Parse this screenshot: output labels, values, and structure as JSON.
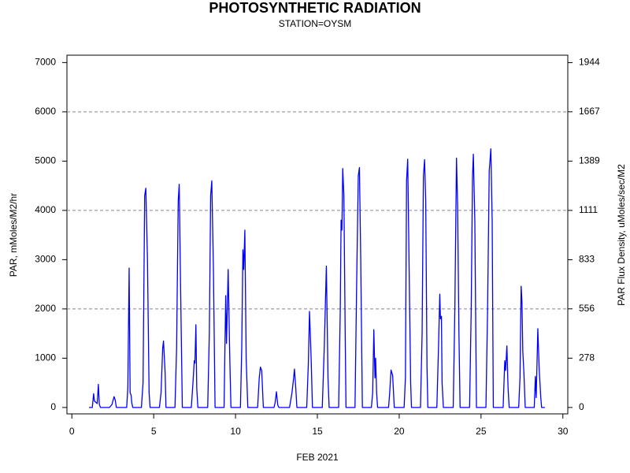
{
  "chart_data": {
    "type": "line",
    "title": "PHOTOSYNTHETIC RADIATION",
    "subtitle": "STATION=OYSM",
    "x_label": "FEB 2021",
    "y_label": "PAR, mMoles/M2/hr",
    "y2_label": "PAR Flux Density, uMoles/sec/M2",
    "color": "#0000ff",
    "grid": true,
    "xlim": [
      -0.3,
      30.3
    ],
    "xticks": [
      0,
      5,
      10,
      15,
      20,
      25,
      30
    ],
    "ylim": [
      -130,
      7150
    ],
    "yticks": [
      0,
      1000,
      2000,
      3000,
      4000,
      5000,
      6000,
      7000
    ],
    "y2lim": [
      -36.1,
      1986.1
    ],
    "y2ticks": [
      0,
      278,
      556,
      833,
      1111,
      1389,
      1667,
      1944
    ],
    "x": [
      1.05,
      1.25,
      1.33,
      1.38,
      1.55,
      1.62,
      1.68,
      1.75,
      2.3,
      2.45,
      2.58,
      2.65,
      2.72,
      3.35,
      3.42,
      3.5,
      3.56,
      3.62,
      3.66,
      3.72,
      4.25,
      4.35,
      4.45,
      4.52,
      4.62,
      4.72,
      4.78,
      5.35,
      5.45,
      5.55,
      5.6,
      5.7,
      5.75,
      6.3,
      6.4,
      6.5,
      6.56,
      6.65,
      6.75,
      7.3,
      7.4,
      7.48,
      7.52,
      7.58,
      7.63,
      7.7,
      8.3,
      8.4,
      8.48,
      8.55,
      8.65,
      8.75,
      9.3,
      9.4,
      9.45,
      9.55,
      9.65,
      9.72,
      10.3,
      10.38,
      10.45,
      10.5,
      10.57,
      10.65,
      10.72,
      10.75,
      11.35,
      11.45,
      11.52,
      11.6,
      11.7,
      12.35,
      12.42,
      12.5,
      12.58,
      12.65,
      13.3,
      13.45,
      13.55,
      13.6,
      13.68,
      13.75,
      14.35,
      14.45,
      14.52,
      14.62,
      14.7,
      15.3,
      15.42,
      15.55,
      15.65,
      15.72,
      16.3,
      16.4,
      16.45,
      16.5,
      16.55,
      16.62,
      16.7,
      16.75,
      17.3,
      17.4,
      17.5,
      17.57,
      17.65,
      17.75,
      18.3,
      18.38,
      18.45,
      18.52,
      18.56,
      18.62,
      18.68,
      19.35,
      19.42,
      19.5,
      19.6,
      19.7,
      20.3,
      20.38,
      20.45,
      20.52,
      20.6,
      20.7,
      20.75,
      21.3,
      21.4,
      21.48,
      21.55,
      21.62,
      21.7,
      21.75,
      22.3,
      22.4,
      22.48,
      22.52,
      22.58,
      22.62,
      22.7,
      23.3,
      23.4,
      23.5,
      23.57,
      23.65,
      23.72,
      24.3,
      24.4,
      24.48,
      24.53,
      24.62,
      24.72,
      25.3,
      25.4,
      25.5,
      25.6,
      25.68,
      25.75,
      26.35,
      26.45,
      26.5,
      26.58,
      26.65,
      26.72,
      27.3,
      27.38,
      27.45,
      27.5,
      27.55,
      27.62,
      27.7,
      28.25,
      28.32,
      28.37,
      28.47,
      28.55,
      28.65,
      28.7,
      28.9
    ],
    "values": [
      0,
      0,
      280,
      130,
      80,
      470,
      60,
      0,
      0,
      60,
      220,
      150,
      0,
      0,
      400,
      2830,
      300,
      250,
      100,
      0,
      0,
      500,
      4300,
      4450,
      3000,
      300,
      0,
      0,
      300,
      1200,
      1350,
      700,
      0,
      0,
      1200,
      4200,
      4530,
      2300,
      0,
      0,
      500,
      950,
      900,
      1680,
      400,
      0,
      0,
      1500,
      4300,
      4600,
      2800,
      0,
      0,
      2270,
      1300,
      2800,
      1000,
      0,
      0,
      1200,
      3200,
      2800,
      3600,
      1000,
      300,
      0,
      0,
      600,
      820,
      750,
      0,
      0,
      100,
      320,
      50,
      0,
      0,
      300,
      600,
      780,
      400,
      0,
      0,
      900,
      1950,
      1000,
      0,
      0,
      1200,
      2870,
      600,
      0,
      0,
      2000,
      3800,
      3600,
      4850,
      4300,
      1500,
      0,
      0,
      2500,
      4700,
      4870,
      3000,
      0,
      0,
      300,
      1580,
      600,
      1000,
      300,
      0,
      0,
      300,
      760,
      650,
      0,
      0,
      600,
      4600,
      5040,
      3000,
      500,
      0,
      0,
      1500,
      4700,
      5030,
      4200,
      800,
      0,
      0,
      1200,
      2300,
      1800,
      1850,
      500,
      0,
      0,
      2000,
      5060,
      4100,
      1500,
      0,
      0,
      2000,
      4700,
      5140,
      3800,
      0,
      0,
      2000,
      4800,
      5250,
      3800,
      0,
      0,
      950,
      750,
      1250,
      400,
      0,
      0,
      600,
      2460,
      2150,
      1150,
      700,
      0,
      0,
      630,
      200,
      1600,
      800,
      200,
      0,
      0
    ]
  }
}
